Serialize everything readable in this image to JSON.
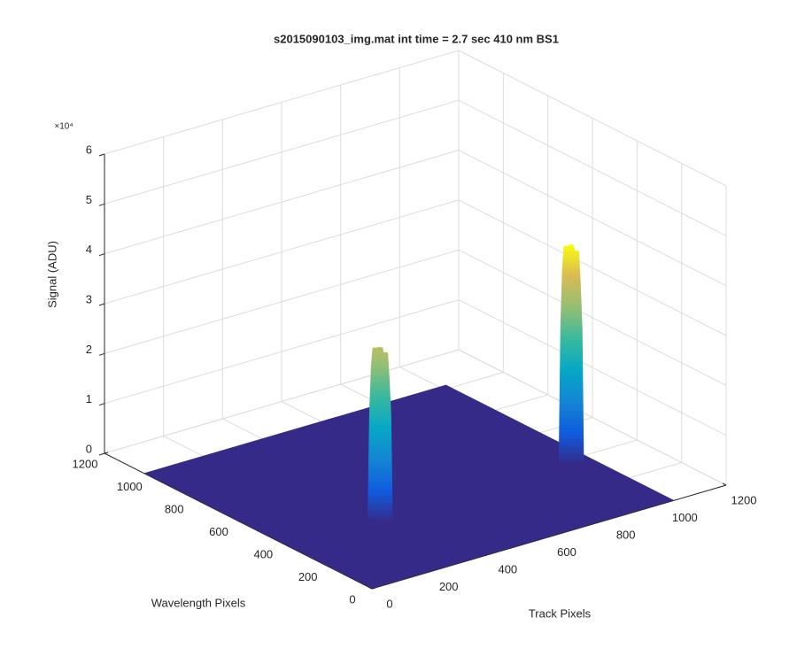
{
  "chart_data": {
    "type": "surface3d",
    "title": "s2015090103_img.mat int time = 2.7 sec  410 nm BS1",
    "xlabel": "Track Pixels",
    "ylabel": "Wavelength Pixels",
    "zlabel": "Signal (ADU)",
    "zscale_label": "×10⁴",
    "xlim": [
      0,
      1200
    ],
    "xticks": [
      0,
      200,
      400,
      600,
      800,
      1000,
      1200
    ],
    "ylim": [
      0,
      1200
    ],
    "yticks": [
      0,
      200,
      400,
      600,
      800,
      1000,
      1200
    ],
    "zlim": [
      0,
      6
    ],
    "zticks": [
      0,
      1,
      2,
      3,
      4,
      5,
      6
    ],
    "surface_xrange": [
      1,
      1024
    ],
    "surface_yrange": [
      1,
      1024
    ],
    "peaks": {
      "x": [
        300,
        955
      ],
      "y": [
        360,
        370
      ],
      "z": [
        3.5,
        4.4
      ]
    },
    "colormap": [
      "#352a87",
      "#0f5cdd",
      "#1485d4",
      "#06a7c6",
      "#38b99e",
      "#92bf73",
      "#d9ba56",
      "#f9fb0e"
    ],
    "grid": true
  }
}
